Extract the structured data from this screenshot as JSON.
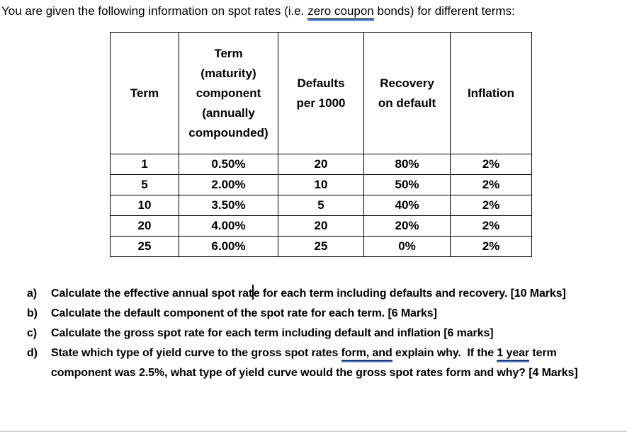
{
  "colors": {
    "underline_blue": "#4472C4",
    "ink": "#000000",
    "bottom_divider": "#d4d4d4"
  },
  "intro": {
    "segments": [
      {
        "text": "You are given the following information on spot rates (i.e. "
      },
      {
        "text": "zero coupon",
        "underline": true
      },
      {
        "text": " bonds) for different terms:"
      }
    ]
  },
  "table": {
    "headers": [
      "Term",
      "Term\n(maturity)\ncomponent\n(annually\ncompounded)",
      "Defaults\nper 1000",
      "Recovery\non default",
      "Inflation"
    ],
    "rows": [
      [
        "1",
        "0.50%",
        "20",
        "80%",
        "2%"
      ],
      [
        "5",
        "2.00%",
        "10",
        "50%",
        "2%"
      ],
      [
        "10",
        "3.50%",
        "5",
        "40%",
        "2%"
      ],
      [
        "20",
        "4.00%",
        "20",
        "20%",
        "2%"
      ],
      [
        "25",
        "6.00%",
        "25",
        "0%",
        "2%"
      ]
    ]
  },
  "questions": {
    "items": [
      {
        "marker": "a)",
        "pre_caret": "Calculate the effective annual spot rat",
        "post_caret": "e for each term including defaults and recovery. [10 Marks]"
      },
      {
        "marker": "b)",
        "text": "Calculate the default component of the spot rate for each term. [6 Marks]"
      },
      {
        "marker": "c)",
        "text": "Calculate the gross spot rate for each term including default and inflation [6 marks]"
      },
      {
        "marker": "d)",
        "segments": [
          {
            "text": "State which type of yield curve to the gross spot rates "
          },
          {
            "text": "form, and",
            "underline": true
          },
          {
            "text": " explain why.  If the "
          },
          {
            "text": "1 year",
            "underline": true
          },
          {
            "text": " term component was 2.5%, what type of yield curve would the gross spot rates form and why? [4 Marks]"
          }
        ]
      }
    ]
  }
}
